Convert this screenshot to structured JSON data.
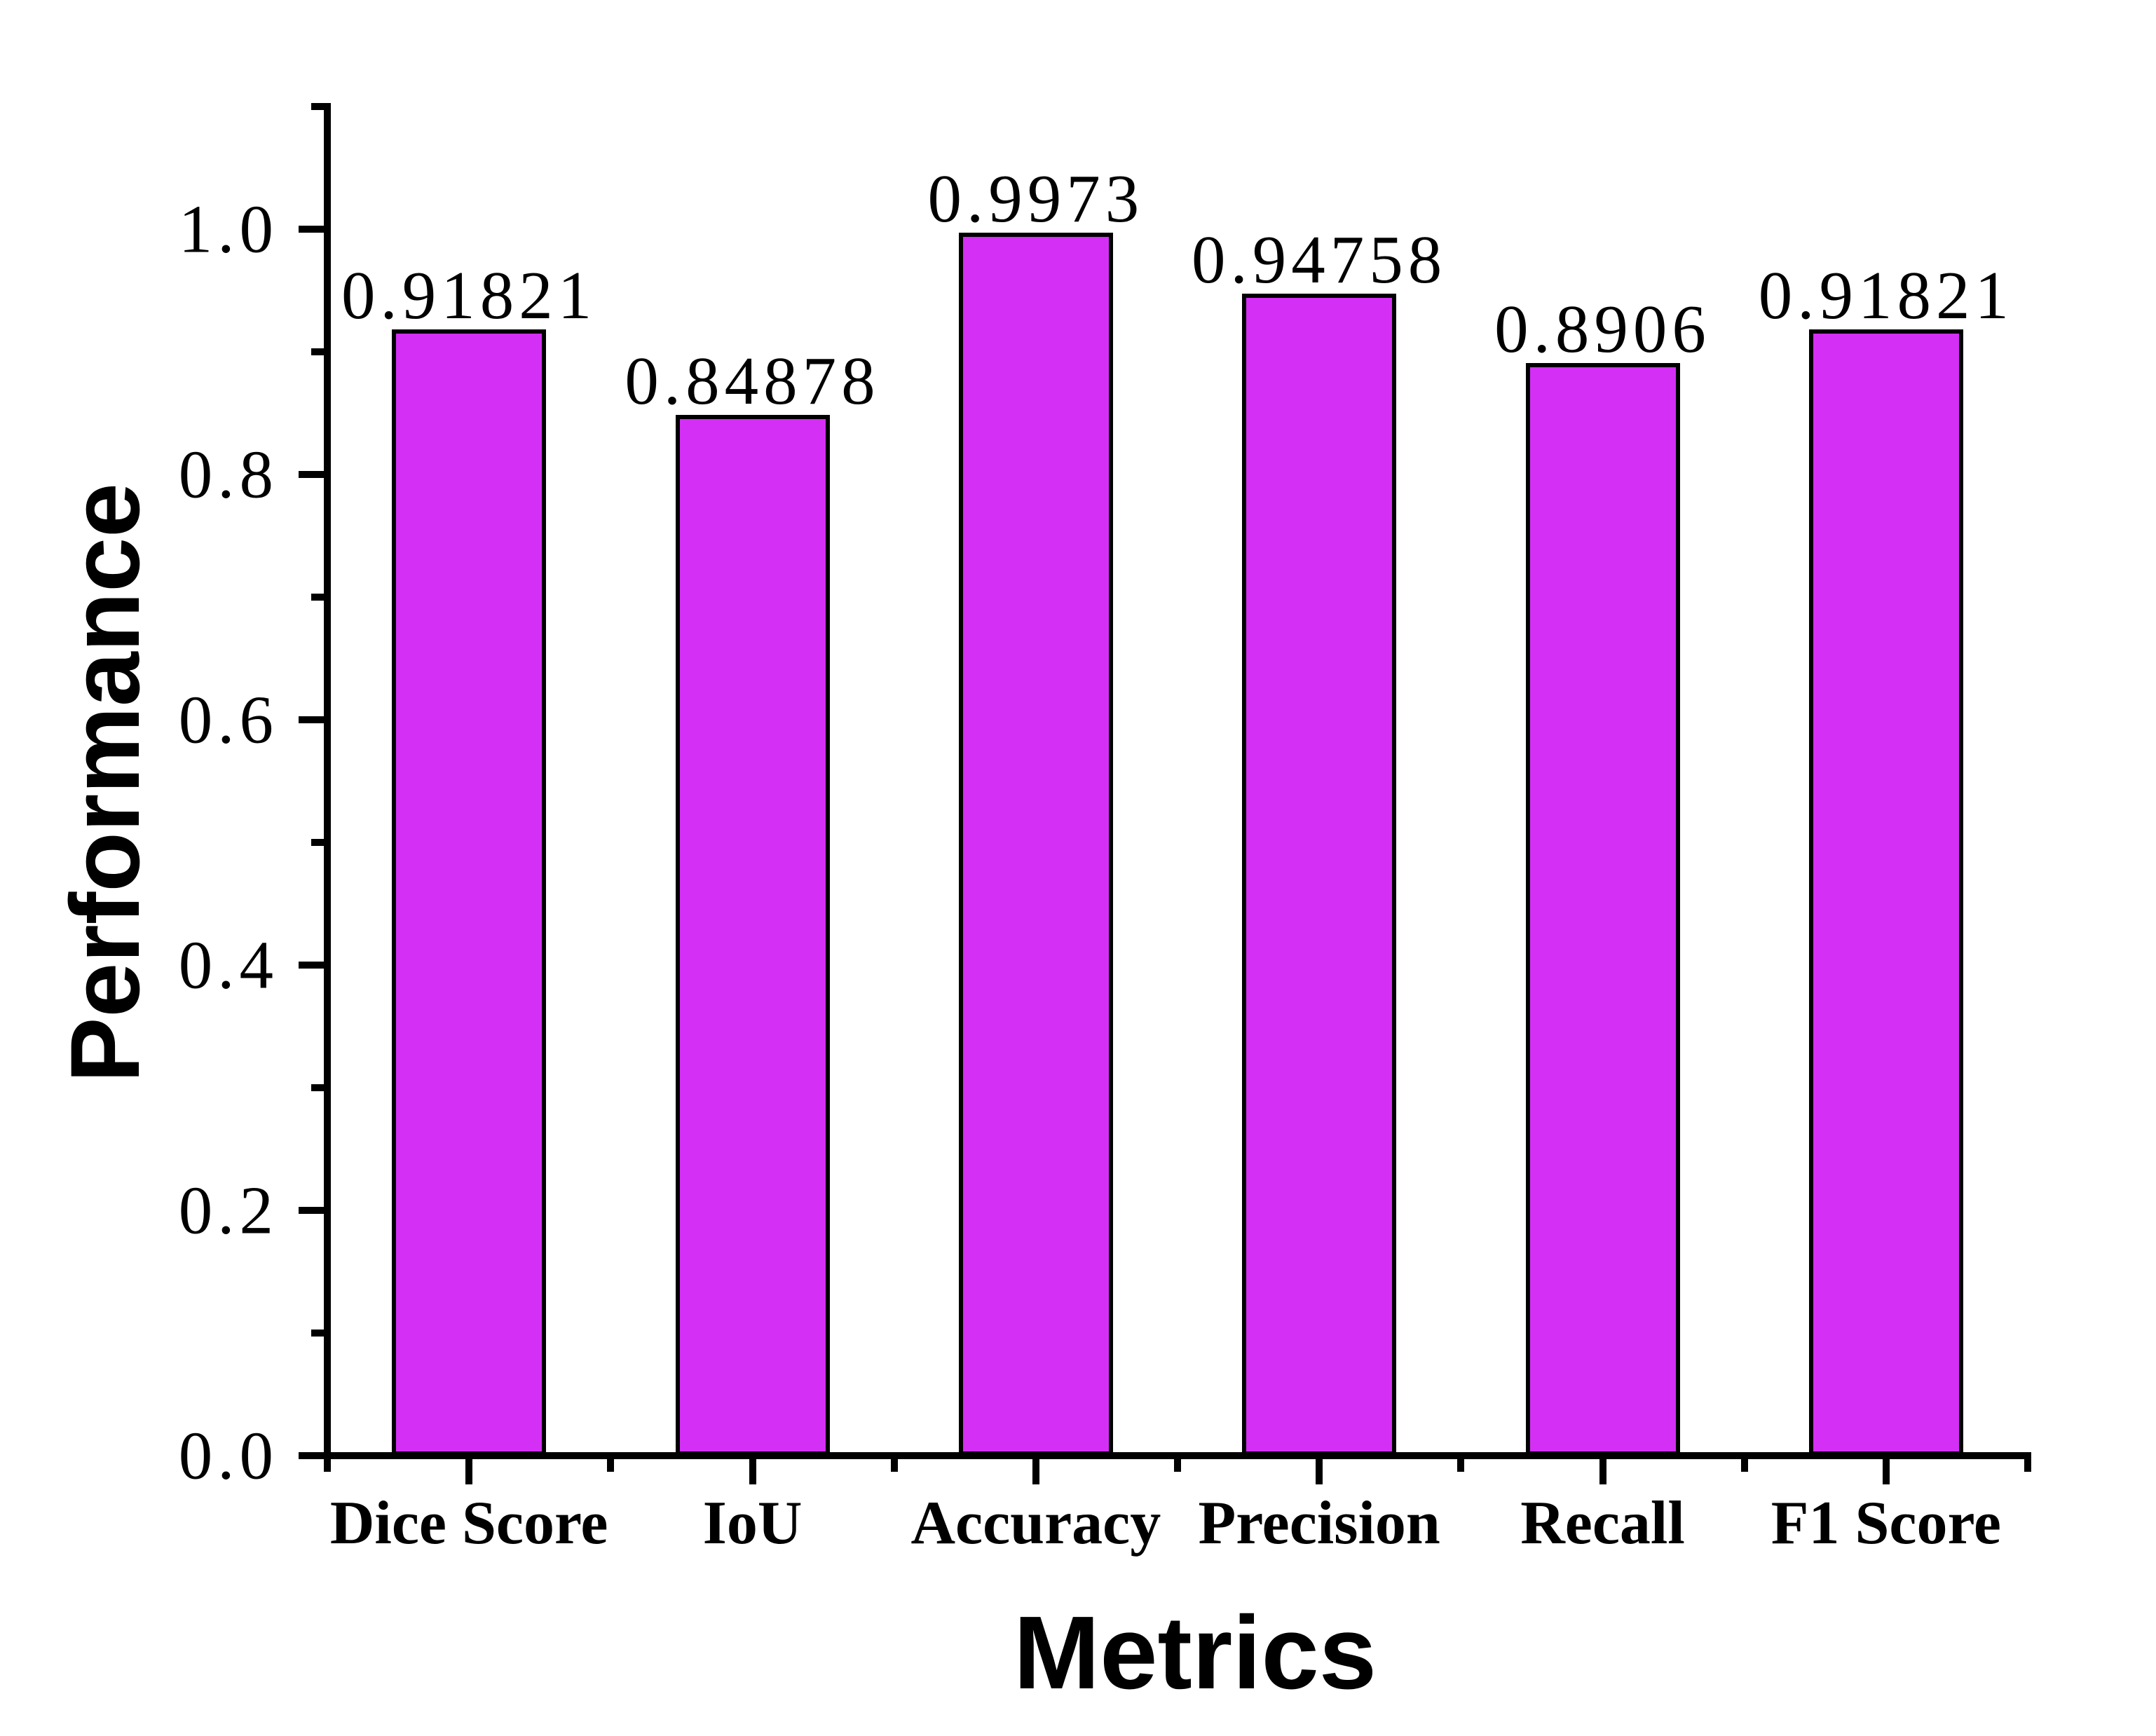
{
  "page": {
    "background": "#FFFFFF"
  },
  "chart_data": {
    "type": "bar",
    "title": "",
    "xlabel": "Metrics",
    "ylabel": "Performance",
    "categories": [
      "Dice Score",
      "IoU",
      "Accuracy",
      "Precision",
      "Recall",
      "F1 Score"
    ],
    "values": [
      0.91821,
      0.84878,
      0.9973,
      0.94758,
      0.8906,
      0.91821
    ],
    "bar_value_labels": [
      "0.91821",
      "0.84878",
      "0.9973",
      "0.94758",
      "0.8906",
      "0.91821"
    ],
    "ylim": [
      0,
      1.1
    ],
    "yticks": {
      "major": [
        {
          "value": 0.0,
          "label": "0.0"
        },
        {
          "value": 0.2,
          "label": "0.2"
        },
        {
          "value": 0.4,
          "label": "0.4"
        },
        {
          "value": 0.6,
          "label": "0.6"
        },
        {
          "value": 0.8,
          "label": "0.8"
        },
        {
          "value": 1.0,
          "label": "1.0"
        }
      ],
      "minor": [
        0.1,
        0.3,
        0.5,
        0.7,
        0.9,
        1.1
      ]
    },
    "grid": false,
    "legend": "none",
    "colors": {
      "bar_fill": "#D42FF5",
      "bar_edge": "#000000",
      "axis": "#000000",
      "text": "#000000",
      "background": "#FFFFFF"
    }
  }
}
